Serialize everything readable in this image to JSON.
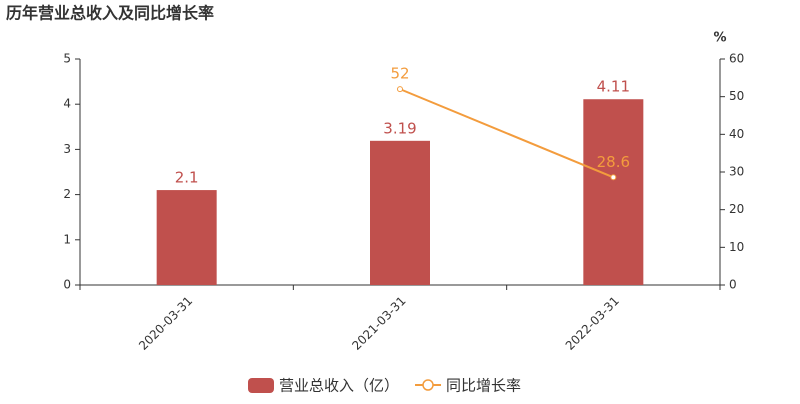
{
  "chart_data": {
    "type": "bar",
    "title": "历年营业总收入及同比增长率",
    "categories": [
      "2020-03-31",
      "2021-03-31",
      "2022-03-31"
    ],
    "series": [
      {
        "name": "营业总收入（亿）",
        "type": "bar",
        "color": "#c0504d",
        "values": [
          2.1,
          3.19,
          4.11
        ]
      },
      {
        "name": "同比增长率",
        "type": "line",
        "axis": "y2",
        "color": "#f39c3d",
        "values": [
          null,
          52,
          28.6
        ]
      }
    ],
    "ylim": [
      0,
      5
    ],
    "yticks": [
      0,
      1,
      2,
      3,
      4,
      5
    ],
    "y2label": "%",
    "y2lim": [
      0,
      60
    ],
    "y2ticks": [
      0,
      10,
      20,
      30,
      40,
      50,
      60
    ],
    "grid": false
  }
}
